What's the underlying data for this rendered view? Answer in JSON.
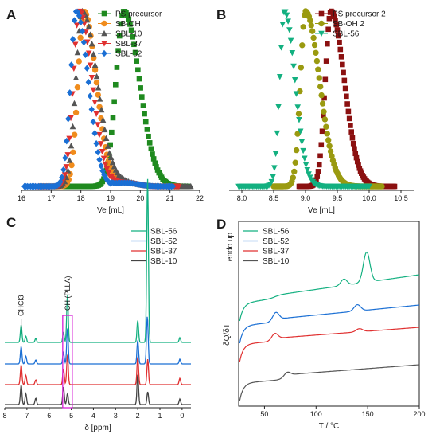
{
  "chart_data": [
    {
      "panel": "A",
      "type": "scatter",
      "xlabel": "Ve [mL]",
      "xlim": [
        16,
        22
      ],
      "ticks": [
        "16",
        "17",
        "18",
        "19",
        "20",
        "21",
        "22"
      ],
      "series": [
        {
          "name": "PS precursor",
          "color": "#1f8a1f",
          "marker": "square",
          "peak": 19.45,
          "sigma": 0.27,
          "tail": 0.25,
          "range": [
            17.4,
            21.6
          ]
        },
        {
          "name": "SB-OH",
          "color": "#f08c1c",
          "marker": "circle",
          "peak": 18.1,
          "sigma": 0.2,
          "tail": 0.22,
          "range": [
            16.6,
            21.3
          ]
        },
        {
          "name": "SBL-10",
          "color": "#555555",
          "marker": "triangle-up",
          "peak": 18.05,
          "sigma": 0.22,
          "tail": 0.28,
          "range": [
            16.6,
            21.7
          ]
        },
        {
          "name": "SBL-37",
          "color": "#e03030",
          "marker": "triangle-down",
          "peak": 17.95,
          "sigma": 0.21,
          "tail": 0.22,
          "range": [
            16.5,
            21.3
          ]
        },
        {
          "name": "SBL-52",
          "color": "#1a6fd4",
          "marker": "diamond",
          "peak": 17.85,
          "sigma": 0.2,
          "tail": 0.2,
          "range": [
            16.1,
            21.1
          ]
        }
      ]
    },
    {
      "panel": "B",
      "type": "scatter",
      "xlabel": "Ve [mL]",
      "xlim": [
        7.8,
        10.7
      ],
      "ticks": [
        "8.0",
        "8.5",
        "9.0",
        "9.5",
        "10.0",
        "10.5"
      ],
      "series": [
        {
          "name": "PS precursor 2",
          "color": "#8b1010",
          "marker": "square",
          "peak": 9.4,
          "sigma": 0.09,
          "tail": 0.12,
          "range": [
            8.9,
            10.4
          ]
        },
        {
          "name": "SB-OH 2",
          "color": "#9a9a10",
          "marker": "circle",
          "peak": 9.0,
          "sigma": 0.08,
          "tail": 0.14,
          "range": [
            8.5,
            10.2
          ]
        },
        {
          "name": "SBL-56",
          "color": "#13b080",
          "marker": "triangle-down",
          "peak": 8.67,
          "sigma": 0.075,
          "tail": 0.09,
          "range": [
            7.95,
            10.0
          ]
        }
      ]
    },
    {
      "panel": "C",
      "type": "line",
      "xlabel": "δ [ppm]",
      "xlim": [
        8,
        -0.4
      ],
      "ticks": [
        "8",
        "7",
        "6",
        "5",
        "4",
        "3",
        "2",
        "1",
        "0"
      ],
      "annotations": [
        "CHCl3",
        "CH (PLLA)"
      ],
      "series": [
        {
          "name": "SBL-56",
          "color": "#13b080",
          "peaks": [
            [
              7.26,
              22
            ],
            [
              7.05,
              8
            ],
            [
              6.6,
              5
            ],
            [
              5.35,
              12
            ],
            [
              5.17,
              60
            ],
            [
              2.0,
              28
            ],
            [
              1.58,
              55
            ],
            [
              1.55,
              165
            ],
            [
              0.1,
              6
            ]
          ]
        },
        {
          "name": "SBL-52",
          "color": "#1a6fd4",
          "peaks": [
            [
              7.26,
              22
            ],
            [
              7.05,
              10
            ],
            [
              6.6,
              5
            ],
            [
              5.35,
              14
            ],
            [
              5.17,
              45
            ],
            [
              2.0,
              30
            ],
            [
              1.58,
              40
            ],
            [
              1.55,
              25
            ],
            [
              0.1,
              6
            ]
          ]
        },
        {
          "name": "SBL-37",
          "color": "#e03030",
          "peaks": [
            [
              7.26,
              25
            ],
            [
              7.05,
              12
            ],
            [
              6.6,
              6
            ],
            [
              5.35,
              20
            ],
            [
              5.17,
              38
            ],
            [
              2.0,
              35
            ],
            [
              1.55,
              32
            ],
            [
              0.1,
              8
            ]
          ]
        },
        {
          "name": "SBL-10",
          "color": "#444444",
          "peaks": [
            [
              7.26,
              25
            ],
            [
              7.05,
              14
            ],
            [
              6.6,
              8
            ],
            [
              5.35,
              22
            ],
            [
              5.17,
              14
            ],
            [
              2.0,
              38
            ],
            [
              1.55,
              16
            ],
            [
              0.1,
              7
            ]
          ]
        }
      ]
    },
    {
      "panel": "D",
      "type": "line",
      "xlabel": "T / °C",
      "ylabel": "δQ/δT",
      "note": "endo up",
      "xlim": [
        25,
        200
      ],
      "ticks": [
        "50",
        "100",
        "150",
        "200"
      ],
      "series": [
        {
          "name": "SBL-56",
          "color": "#13b080",
          "step": 60,
          "cold_cryst": null,
          "melt": [
            149,
            38
          ],
          "pre_melt": [
            127,
            8
          ]
        },
        {
          "name": "SBL-52",
          "color": "#1a6fd4",
          "step": 60,
          "cold_cryst": [
            61,
            10
          ],
          "melt": [
            140,
            8
          ],
          "pre_melt": null
        },
        {
          "name": "SBL-37",
          "color": "#e03030",
          "step": 60,
          "cold_cryst": [
            60,
            8
          ],
          "melt": [
            142,
            4
          ],
          "pre_melt": null
        },
        {
          "name": "SBL-10",
          "color": "#555555",
          "step": 70,
          "cold_cryst": [
            72,
            5
          ],
          "melt": null,
          "pre_melt": null
        }
      ]
    }
  ]
}
